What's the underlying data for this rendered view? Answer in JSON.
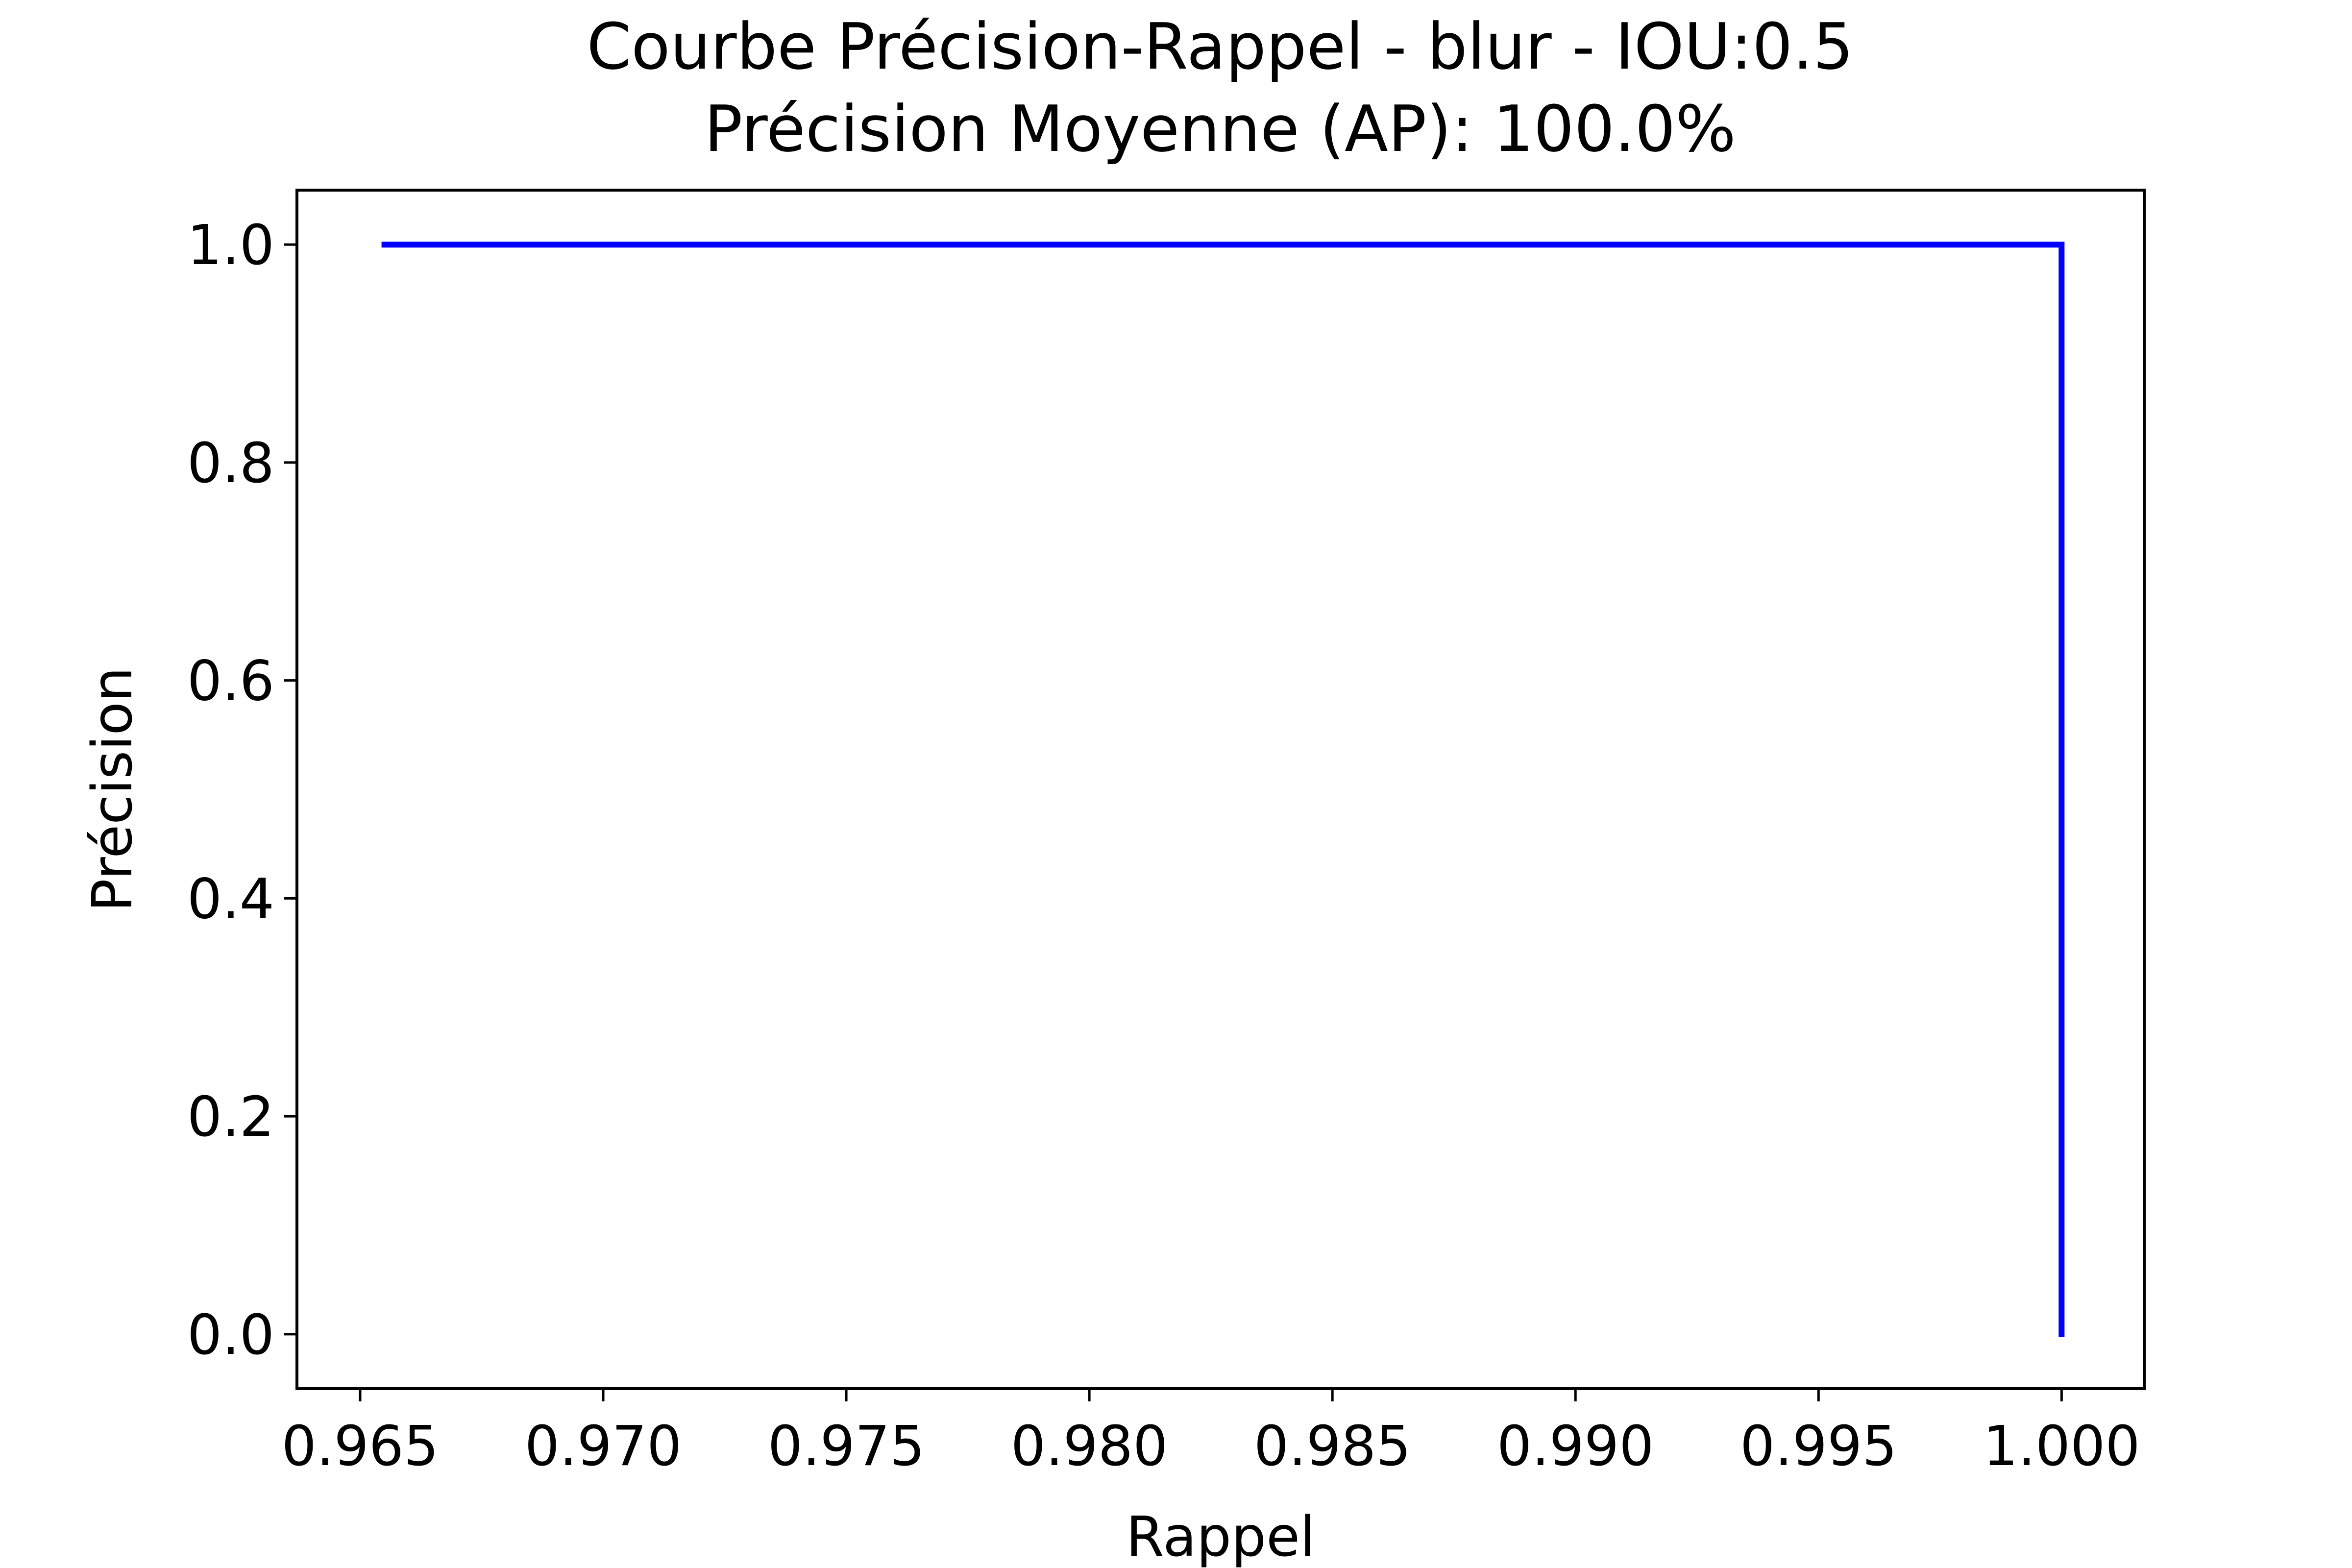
{
  "chart_data": {
    "type": "line",
    "title": "Courbe Précision-Rappel - blur - IOU:0.5",
    "subtitle": "Précision Moyenne (AP): 100.0%",
    "xlabel": "Rappel",
    "ylabel": "Précision",
    "xlim": [
      0.9637,
      1.0017
    ],
    "ylim": [
      -0.05,
      1.05
    ],
    "xticks": [
      0.965,
      0.97,
      0.975,
      0.98,
      0.985,
      0.99,
      0.995,
      1.0
    ],
    "xtick_labels": [
      "0.965",
      "0.970",
      "0.975",
      "0.980",
      "0.985",
      "0.990",
      "0.995",
      "1.000"
    ],
    "yticks": [
      0.0,
      0.2,
      0.4,
      0.6,
      0.8,
      1.0
    ],
    "ytick_labels": [
      "0.0",
      "0.2",
      "0.4",
      "0.6",
      "0.8",
      "1.0"
    ],
    "grid": false,
    "series": [
      {
        "color": "#0000ff",
        "x": [
          0.9655,
          1.0,
          1.0
        ],
        "y": [
          1.0,
          1.0,
          0.0
        ]
      }
    ]
  }
}
